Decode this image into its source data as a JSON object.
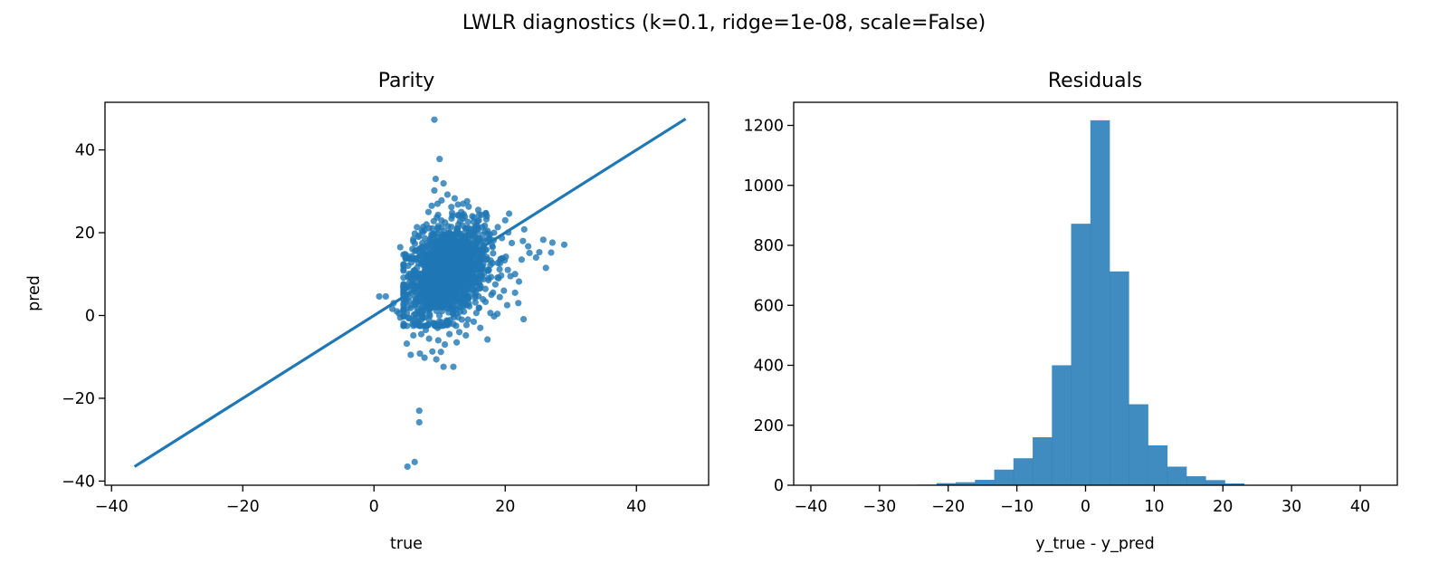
{
  "figure": {
    "suptitle": "LWLR diagnostics (k=0.1, ridge=1e-08, scale=False)"
  },
  "chart_data": [
    {
      "type": "scatter",
      "title": "Parity",
      "xlabel": "true",
      "ylabel": "pred",
      "xlim": [
        -41,
        51
      ],
      "ylim": [
        -41,
        51.5
      ],
      "xticks": [
        -40,
        -20,
        0,
        20,
        40
      ],
      "yticks": [
        -40,
        -20,
        0,
        20,
        40
      ],
      "grid": false,
      "point_color": "#1f77b4",
      "point_alpha": 0.8,
      "identity_line": {
        "x": [
          -36.5,
          47.5
        ],
        "y": [
          -36.5,
          47.5
        ],
        "color": "#1f77b4"
      },
      "points": [
        [
          9.2,
          47.3
        ],
        [
          10.0,
          37.8
        ],
        [
          9.4,
          33.0
        ],
        [
          10.6,
          31.9
        ],
        [
          9.2,
          30.2
        ],
        [
          11.2,
          29.2
        ],
        [
          12.3,
          28.3
        ],
        [
          14.2,
          27.6
        ],
        [
          11.8,
          26.2
        ],
        [
          16.4,
          24.3
        ],
        [
          20.6,
          24.6
        ],
        [
          17.2,
          24.0
        ],
        [
          22.9,
          20.8
        ],
        [
          20.0,
          23.0
        ],
        [
          25.8,
          18.3
        ],
        [
          27.2,
          17.6
        ],
        [
          29.0,
          17.1
        ],
        [
          27.0,
          15.2
        ],
        [
          25.2,
          15.3
        ],
        [
          23.7,
          15.1
        ],
        [
          26.2,
          11.5
        ],
        [
          22.5,
          13.5
        ],
        [
          21.5,
          10.0
        ],
        [
          20.8,
          9.5
        ],
        [
          22.1,
          8.2
        ],
        [
          21.5,
          5.5
        ],
        [
          22.0,
          3.0
        ],
        [
          22.8,
          -0.9
        ],
        [
          20.3,
          2.5
        ],
        [
          18.8,
          0.4
        ],
        [
          18.3,
          -0.2
        ],
        [
          17.3,
          -5.8
        ],
        [
          15.2,
          -1.5
        ],
        [
          14.1,
          -2.3
        ],
        [
          14.0,
          -4.8
        ],
        [
          13.0,
          -4.0
        ],
        [
          12.1,
          -12.4
        ],
        [
          10.6,
          -12.4
        ],
        [
          9.5,
          -10.6
        ],
        [
          8.9,
          -8.7
        ],
        [
          7.7,
          -10.2
        ],
        [
          7.0,
          -9.2
        ],
        [
          5.6,
          -9.5
        ],
        [
          5.0,
          -6.8
        ],
        [
          6.0,
          -4.8
        ],
        [
          7.2,
          -4.5
        ],
        [
          7.9,
          -3.5
        ],
        [
          9.7,
          -3.0
        ],
        [
          11.5,
          -4.5
        ],
        [
          9.8,
          -6.0
        ],
        [
          10.8,
          -7.0
        ],
        [
          6.9,
          -23.0
        ],
        [
          6.9,
          -25.8
        ],
        [
          6.2,
          -35.4
        ],
        [
          5.1,
          -36.5
        ],
        [
          0.8,
          4.6
        ],
        [
          1.8,
          4.6
        ],
        [
          3.0,
          3.0
        ],
        [
          3.5,
          1.0
        ],
        [
          2.8,
          1.6
        ],
        [
          3.8,
          0.5
        ],
        [
          4.0,
          -0.5
        ],
        [
          4.5,
          1.2
        ],
        [
          4.0,
          16.5
        ],
        [
          4.8,
          14.0
        ],
        [
          5.2,
          12.0
        ],
        [
          6.0,
          18.5
        ],
        [
          6.8,
          19.0
        ],
        [
          7.3,
          20.5
        ],
        [
          8.0,
          22.0
        ],
        [
          8.3,
          25.0
        ],
        [
          8.8,
          26.5
        ],
        [
          10.3,
          27.8
        ],
        [
          12.8,
          26.8
        ],
        [
          13.3,
          25.0
        ],
        [
          15.2,
          22.6
        ],
        [
          16.9,
          21.7
        ],
        [
          18.3,
          20.0
        ],
        [
          19.5,
          18.7
        ],
        [
          21.0,
          17.5
        ],
        [
          22.7,
          18.0
        ],
        [
          23.5,
          16.7
        ],
        [
          24.7,
          14.0
        ],
        [
          20.1,
          14.2
        ],
        [
          19.2,
          12.6
        ],
        [
          20.4,
          11.0
        ],
        [
          19.0,
          9.0
        ],
        [
          18.5,
          7.5
        ],
        [
          19.8,
          6.0
        ],
        [
          17.9,
          5.0
        ],
        [
          17.0,
          3.3
        ],
        [
          16.0,
          1.8
        ],
        [
          15.6,
          0.6
        ],
        [
          13.4,
          -1.0
        ],
        [
          12.2,
          -0.4
        ],
        [
          11.0,
          -1.7
        ],
        [
          8.4,
          -1.0
        ],
        [
          6.2,
          -0.8
        ],
        [
          5.6,
          1.8
        ],
        [
          7.4,
          2.0
        ],
        [
          16.2,
          -3.0
        ],
        [
          12.6,
          -6.5
        ],
        [
          10.2,
          -8.8
        ],
        [
          8.4,
          -5.6
        ],
        [
          5.9,
          -2.0
        ]
      ],
      "cloud": {
        "n": 1600,
        "x_mean": 11.0,
        "x_sd": 3.0,
        "y_mean": 10.5,
        "y_sd": 5.6,
        "correlation": 0.3,
        "x_range": [
          4.5,
          22.5
        ],
        "y_range": [
          -2.5,
          27.0
        ]
      }
    },
    {
      "type": "histogram",
      "title": "Residuals",
      "xlabel": "y_true - y_pred",
      "ylabel": "",
      "xlim": [
        -42.5,
        45.4
      ],
      "ylim": [
        0,
        1277
      ],
      "xticks": [
        -40,
        -30,
        -20,
        -10,
        0,
        10,
        20,
        30,
        40
      ],
      "yticks": [
        0,
        200,
        400,
        600,
        800,
        1000,
        1200
      ],
      "grid": false,
      "bar_color": "#1f77b4",
      "bar_alpha": 0.85,
      "bin_edges": [
        -38.5,
        -35.7,
        -32.9,
        -30.1,
        -27.3,
        -24.5,
        -21.7,
        -18.9,
        -16.1,
        -13.3,
        -10.5,
        -7.7,
        -4.9,
        -2.1,
        0.7,
        3.5,
        6.3,
        9.1,
        11.9,
        14.7,
        17.5,
        20.3,
        23.1,
        25.9,
        28.7,
        31.5,
        34.3,
        37.1,
        39.9,
        42.7
      ],
      "counts": [
        1,
        1,
        1,
        1,
        1,
        2,
        7,
        10,
        18,
        52,
        90,
        160,
        400,
        872,
        1217,
        713,
        270,
        133,
        62,
        30,
        17,
        6,
        1,
        1,
        1,
        1,
        1,
        1,
        1
      ]
    }
  ]
}
